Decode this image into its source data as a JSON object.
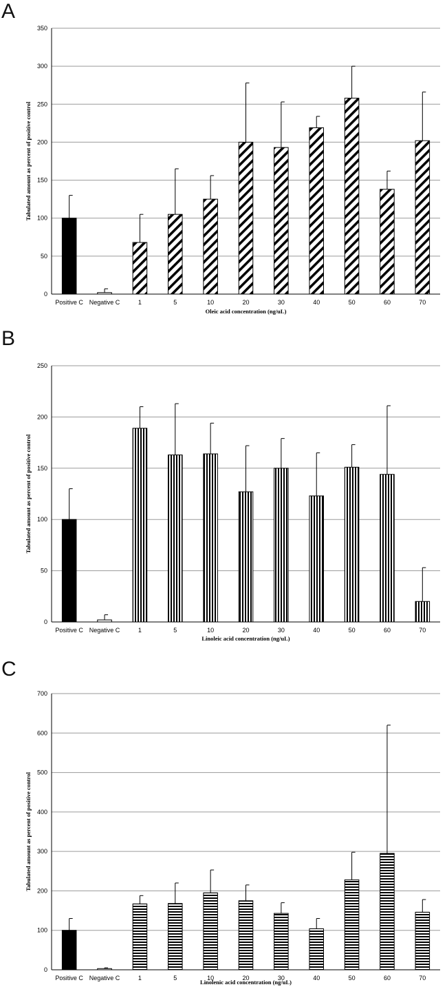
{
  "chart_data": [
    {
      "type": "bar",
      "panel_label": "A",
      "categories": [
        "Positive C",
        "Negative C",
        "1",
        "5",
        "10",
        "20",
        "30",
        "40",
        "50",
        "60",
        "70"
      ],
      "values": [
        100,
        2,
        68,
        105,
        125,
        200,
        193,
        219,
        258,
        138,
        202
      ],
      "error_bars": [
        30,
        5,
        37,
        60,
        31,
        78,
        60,
        15,
        42,
        24,
        64
      ],
      "ylim": [
        0,
        350
      ],
      "yticks": [
        "0",
        "50",
        "100",
        "150",
        "200",
        "250",
        "300",
        "350"
      ],
      "ylabel": "Tabulated amount as percent of positive control",
      "xlabel": "Oleic acid concentration (ng/uL)",
      "grid": true,
      "fill_pattern": "diagonal-stripes"
    },
    {
      "type": "bar",
      "panel_label": "B",
      "categories": [
        "Positive C",
        "Negative C",
        "1",
        "5",
        "10",
        "20",
        "30",
        "40",
        "50",
        "60",
        "70"
      ],
      "values": [
        100,
        2,
        189,
        163,
        164,
        127,
        150,
        123,
        151,
        144,
        20
      ],
      "error_bars": [
        30,
        5,
        21,
        50,
        30,
        45,
        29,
        42,
        22,
        67,
        33
      ],
      "ylim": [
        0,
        250
      ],
      "yticks": [
        "0",
        "50",
        "100",
        "150",
        "200",
        "250"
      ],
      "ylabel": "Tabulated amount as percent of positive control",
      "xlabel": "Linoleic acid concentration (ng/uL)",
      "grid": true,
      "fill_pattern": "vertical-stripes"
    },
    {
      "type": "bar",
      "panel_label": "C",
      "categories": [
        "Positive C",
        "Negative C",
        "1",
        "5",
        "10",
        "20",
        "30",
        "40",
        "50",
        "60",
        "70"
      ],
      "values": [
        100,
        3,
        167,
        168,
        195,
        175,
        143,
        104,
        228,
        295,
        146
      ],
      "error_bars": [
        30,
        2,
        21,
        52,
        58,
        40,
        27,
        26,
        70,
        325,
        32
      ],
      "ylim": [
        0,
        700
      ],
      "yticks": [
        "0",
        "100",
        "200",
        "300",
        "400",
        "500",
        "600",
        "700"
      ],
      "ylabel": "Tabulated amount as percent of positive control",
      "xlabel": "Linolenic acid concentration (ng/uL)",
      "grid": true,
      "fill_pattern": "horizontal-stripes"
    }
  ],
  "colors": {
    "solid_bar": "#000000",
    "grid": "#9a9a9a",
    "axis": "#000000",
    "stripe": "#000000"
  }
}
